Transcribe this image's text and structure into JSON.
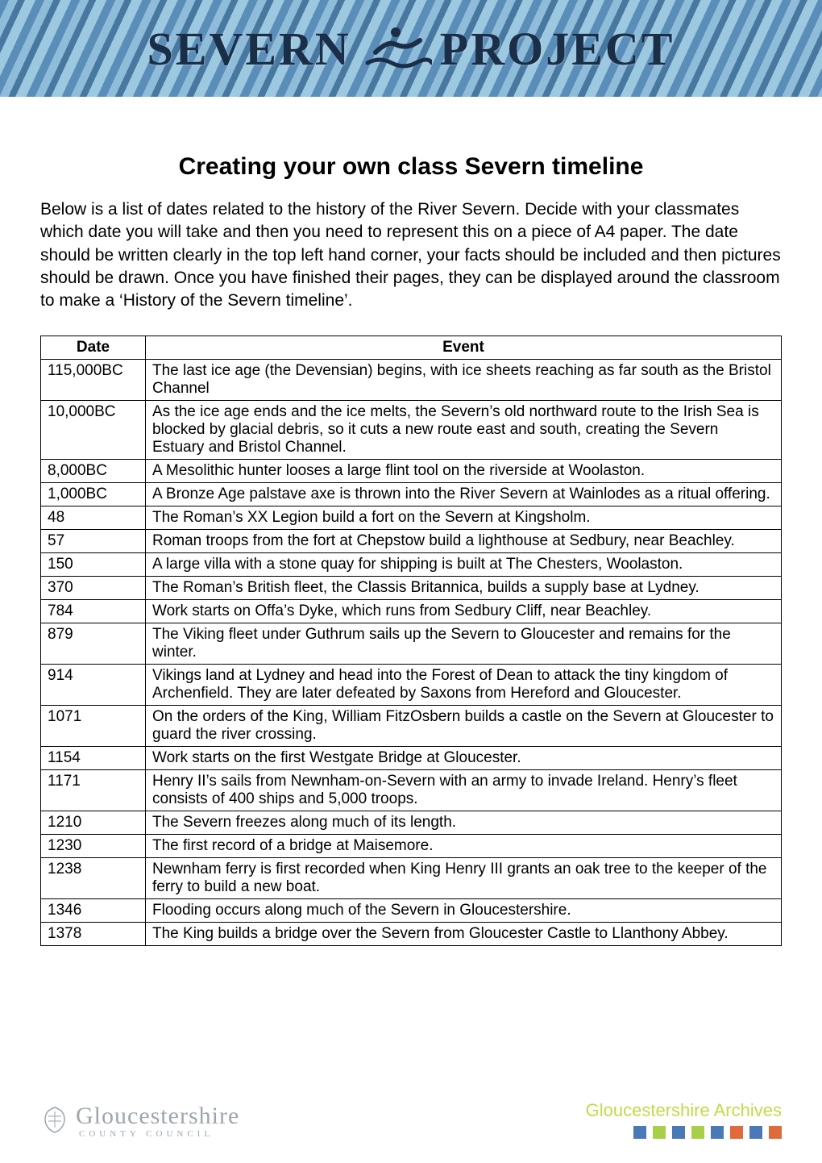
{
  "banner": {
    "left": "SEVERN",
    "right": "PROJECT"
  },
  "title": "Creating your own class Severn timeline",
  "intro": "Below is a list of dates related to the history of the River Severn.  Decide with your classmates which date you will take and then you need to represent this on a piece of A4 paper.  The date should be written clearly in the top left hand corner, your facts should be included and then pictures should be drawn.  Once you have finished their pages, they can be displayed around the classroom to make a ‘History of the Severn timeline’.",
  "table": {
    "headers": {
      "date": "Date",
      "event": "Event"
    },
    "rows": [
      {
        "date": "115,000BC",
        "event": "The last ice age (the Devensian) begins, with ice sheets reaching as far south as the Bristol Channel"
      },
      {
        "date": "10,000BC",
        "event": "As the ice age ends and the ice melts, the Severn’s old northward route to the Irish Sea is blocked by glacial debris, so it cuts a new route east and south, creating the Severn Estuary and Bristol Channel."
      },
      {
        "date": "8,000BC",
        "event": "A Mesolithic hunter looses a large flint tool on the riverside at Woolaston."
      },
      {
        "date": "1,000BC",
        "event": "A Bronze Age palstave axe is thrown into the River Severn at Wainlodes as a ritual offering."
      },
      {
        "date": "48",
        "event": "The Roman’s XX Legion build a fort on the Severn at Kingsholm."
      },
      {
        "date": "57",
        "event": "Roman troops from the fort at Chepstow build a lighthouse at Sedbury, near Beachley."
      },
      {
        "date": "150",
        "event": "A large villa with a stone quay for shipping is built at The Chesters, Woolaston."
      },
      {
        "date": "370",
        "event": "The Roman’s British fleet, the Classis Britannica, builds a supply base at Lydney."
      },
      {
        "date": "784",
        "event": "Work starts on Offa’s Dyke, which runs from Sedbury Cliff, near Beachley."
      },
      {
        "date": "879",
        "event": "The Viking fleet under Guthrum sails up the Severn to Gloucester and remains for the winter."
      },
      {
        "date": "914",
        "event": "Vikings land at Lydney and head into the Forest of Dean to attack the tiny kingdom of Archenfield.  They are later defeated by Saxons from Hereford and Gloucester."
      },
      {
        "date": "1071",
        "event": "On the orders of the King, William FitzOsbern builds a castle on the Severn at Gloucester to guard the river crossing."
      },
      {
        "date": "1154",
        "event": "Work starts on the first Westgate Bridge at Gloucester."
      },
      {
        "date": "1171",
        "event": "Henry II’s sails from Newnham-on-Severn with an army to invade Ireland.  Henry’s fleet consists of 400 ships and 5,000 troops."
      },
      {
        "date": "1210",
        "event": "The Severn freezes along much of its length."
      },
      {
        "date": "1230",
        "event": "The first record of a bridge at Maisemore."
      },
      {
        "date": "1238",
        "event": "Newnham ferry is first recorded when King Henry III grants an oak tree to the keeper of the ferry to build a new boat."
      },
      {
        "date": "1346",
        "event": "Flooding occurs along much of the Severn in Gloucestershire."
      },
      {
        "date": "1378",
        "event": "The King builds a bridge over the Severn from Gloucester Castle to Llanthony Abbey."
      }
    ]
  },
  "footer": {
    "org_big": "Gloucestershire",
    "org_small": "COUNTY COUNCIL",
    "archives": "Gloucestershire Archives",
    "square_colors": [
      "#4a79b7",
      "#a9cf4a",
      "#4a79b7",
      "#a9cf4a",
      "#4a79b7",
      "#e06a3b",
      "#4a79b7",
      "#e06a3b"
    ]
  },
  "colors": {
    "banner_text": "#1a2e48",
    "archives_text": "#c5d948",
    "footer_gray": "#9ea6ad"
  }
}
